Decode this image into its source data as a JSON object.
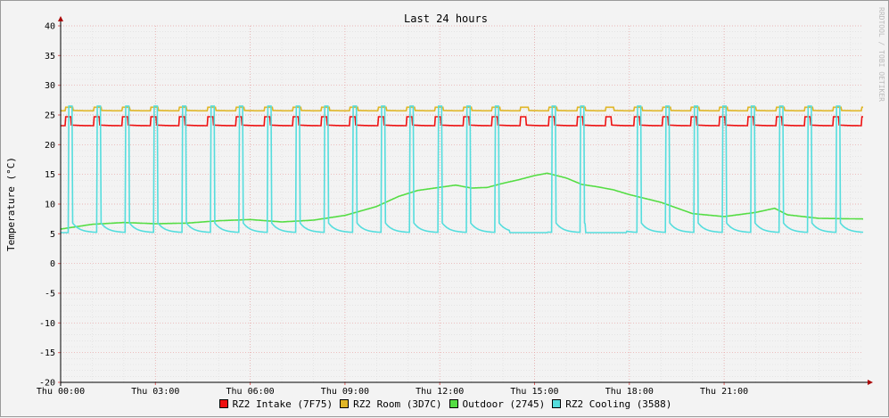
{
  "chart_data": {
    "type": "line",
    "title": "Last 24 hours",
    "ylabel": "Temperature (°C)",
    "watermark": "RRDTOOL / TOBI OETIKER",
    "ylim": [
      -20,
      40
    ],
    "y_ticks": [
      -20,
      -15,
      -10,
      -5,
      0,
      5,
      10,
      15,
      20,
      25,
      30,
      35,
      40
    ],
    "xlim": [
      0,
      25.4
    ],
    "x_ticks": [
      {
        "label": "Thu 00:00",
        "hour": 0
      },
      {
        "label": "Thu 03:00",
        "hour": 3
      },
      {
        "label": "Thu 06:00",
        "hour": 6
      },
      {
        "label": "Thu 09:00",
        "hour": 9
      },
      {
        "label": "Thu 12:00",
        "hour": 12
      },
      {
        "label": "Thu 15:00",
        "hour": 15
      },
      {
        "label": "Thu 18:00",
        "hour": 18
      },
      {
        "label": "Thu 21:00",
        "hour": 21
      }
    ],
    "series": [
      {
        "name": "RZ2 Intake (7F75)",
        "color": "#ee1111",
        "baseline": 23.2,
        "peak_value": 24.7,
        "peak_width": 0.18,
        "cycle_start": 0.15,
        "cycle_hours": 0.9,
        "cycle_drift": 0.0
      },
      {
        "name": "RZ2 Room (3D7C)",
        "color": "#e0b627",
        "baseline": 25.7,
        "peak_value": 26.3,
        "peak_width": 0.25,
        "cycle_start": 0.15,
        "cycle_hours": 0.9,
        "cycle_drift": 0.0
      },
      {
        "name": "Outdoor (2745)",
        "color": "#55dd44",
        "profile": [
          {
            "hour": 0.0,
            "value": 5.8
          },
          {
            "hour": 1.0,
            "value": 6.6
          },
          {
            "hour": 2.0,
            "value": 6.9
          },
          {
            "hour": 3.0,
            "value": 6.7
          },
          {
            "hour": 4.0,
            "value": 6.8
          },
          {
            "hour": 5.0,
            "value": 7.2
          },
          {
            "hour": 6.0,
            "value": 7.4
          },
          {
            "hour": 7.0,
            "value": 7.0
          },
          {
            "hour": 8.0,
            "value": 7.3
          },
          {
            "hour": 9.0,
            "value": 8.1
          },
          {
            "hour": 10.0,
            "value": 9.6
          },
          {
            "hour": 10.7,
            "value": 11.3
          },
          {
            "hour": 11.3,
            "value": 12.3
          },
          {
            "hour": 12.5,
            "value": 13.2
          },
          {
            "hour": 13.0,
            "value": 12.7
          },
          {
            "hour": 13.5,
            "value": 12.8
          },
          {
            "hour": 14.0,
            "value": 13.5
          },
          {
            "hour": 14.5,
            "value": 14.1
          },
          {
            "hour": 15.0,
            "value": 14.8
          },
          {
            "hour": 15.4,
            "value": 15.2
          },
          {
            "hour": 16.0,
            "value": 14.4
          },
          {
            "hour": 16.5,
            "value": 13.3
          },
          {
            "hour": 17.0,
            "value": 12.9
          },
          {
            "hour": 17.5,
            "value": 12.4
          },
          {
            "hour": 18.0,
            "value": 11.6
          },
          {
            "hour": 19.0,
            "value": 10.3
          },
          {
            "hour": 20.0,
            "value": 8.4
          },
          {
            "hour": 21.0,
            "value": 7.9
          },
          {
            "hour": 22.0,
            "value": 8.6
          },
          {
            "hour": 22.6,
            "value": 9.3
          },
          {
            "hour": 23.0,
            "value": 8.2
          },
          {
            "hour": 24.0,
            "value": 7.6
          },
          {
            "hour": 25.4,
            "value": 7.5
          }
        ]
      },
      {
        "name": "RZ2 Cooling (3588)",
        "color": "#55dddd",
        "baseline": 5.2,
        "peak_value": 26.5,
        "peak_width": 0.12,
        "cycle_start": 0.25,
        "cycle_hours": 0.9,
        "cycle_drift": 0.0,
        "gaps": [
          [
            14.2,
            15.4
          ],
          [
            16.6,
            17.9
          ]
        ]
      }
    ]
  }
}
